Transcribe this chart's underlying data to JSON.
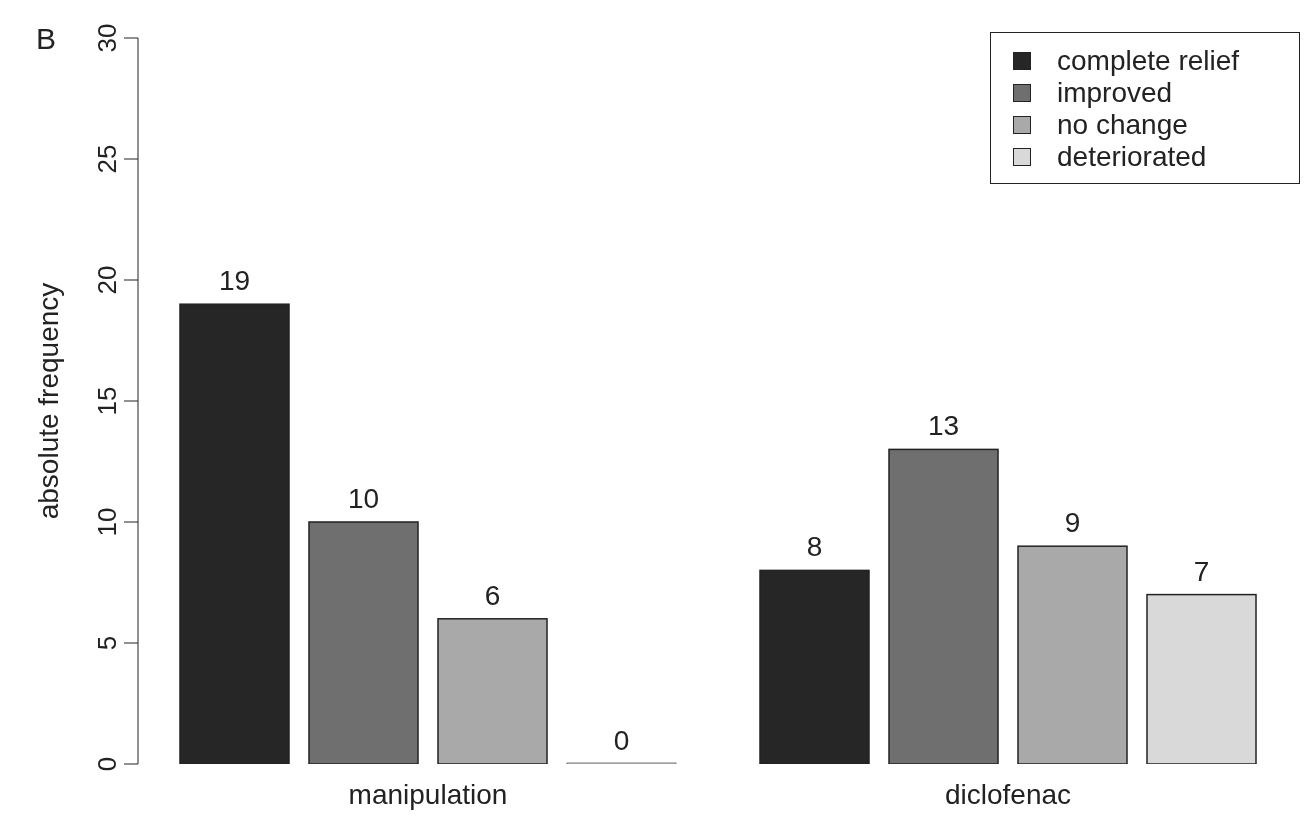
{
  "chart_data": {
    "type": "bar",
    "ylabel": "absolute frequency",
    "annotations": [
      "B"
    ],
    "categories": [
      "manipulation",
      "diclofenac"
    ],
    "series": [
      {
        "name": "complete relief",
        "color": "#262626",
        "values": [
          19,
          8
        ]
      },
      {
        "name": "improved",
        "color": "#6f6f6f",
        "values": [
          10,
          13
        ]
      },
      {
        "name": "no change",
        "color": "#a9a9a9",
        "values": [
          6,
          9
        ]
      },
      {
        "name": "deteriorated",
        "color": "#d9d9d9",
        "values": [
          0,
          7
        ]
      }
    ],
    "ylim": [
      0,
      30
    ],
    "yticks": [
      0,
      5,
      10,
      15,
      20,
      25,
      30
    ],
    "grid": false,
    "legend": "top right",
    "data_labels": true
  }
}
